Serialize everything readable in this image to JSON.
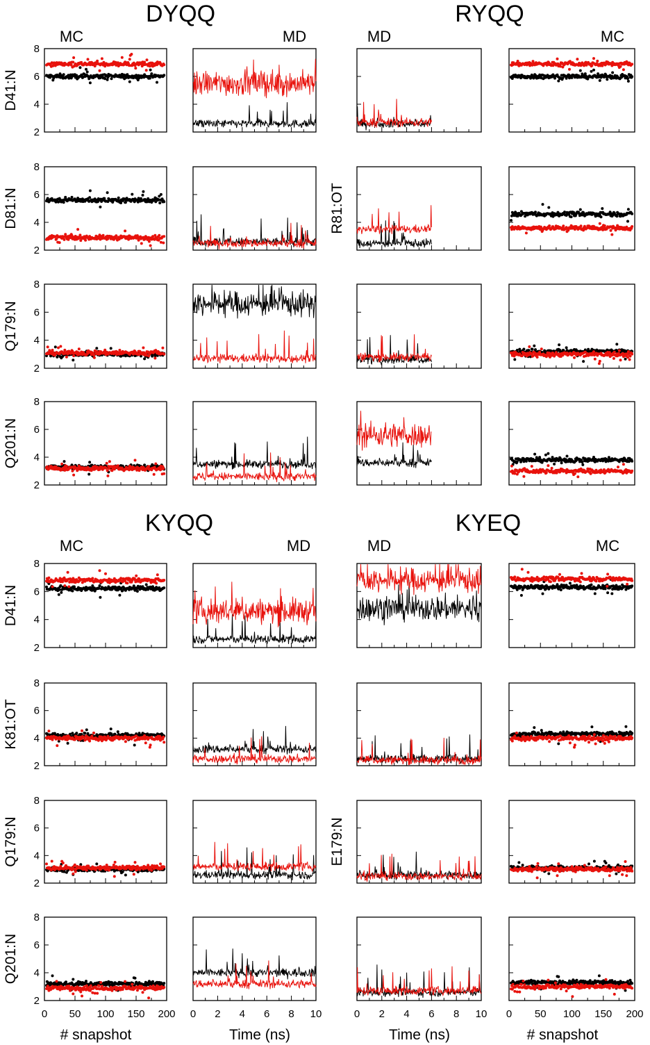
{
  "figure": {
    "y_ticks": [
      "2",
      "4",
      "6",
      "8"
    ],
    "mc_x_ticks": [
      "0",
      "50",
      "100",
      "150",
      "200"
    ],
    "md_x_ticks": [
      "0",
      "2",
      "4",
      "6",
      "8",
      "10"
    ],
    "mc_xlabel": "# snapshot",
    "md_xlabel": "Time (ns)",
    "colors": {
      "series_a": "#000000",
      "series_b": "#e8120c"
    }
  },
  "chart_data": [
    {
      "title": "DYQQ",
      "left_label": "MC",
      "right_label": "MD",
      "type": "scatter",
      "rows": [
        {
          "ylabel": "D41:N",
          "mc": {
            "black": 6.0,
            "red": 6.9
          },
          "md": {
            "black": "2.6",
            "red": "5.5"
          }
        },
        {
          "ylabel": "D81:N",
          "mc": {
            "black": 5.6,
            "red": 2.9
          },
          "md": {
            "black": 2.6,
            "red": 2.5
          }
        },
        {
          "ylabel": "Q179:N",
          "mc": {
            "black": 3.0,
            "red": 3.1
          },
          "md": {
            "black": "6.6",
            "red": 2.7
          }
        },
        {
          "ylabel": "Q201:N",
          "mc": {
            "black": 3.3,
            "red": 3.2
          },
          "md": {
            "black": 3.5,
            "red": 2.6
          }
        }
      ]
    },
    {
      "title": "RYQQ",
      "left_label": "MD",
      "right_label": "MC",
      "type": "scatter",
      "rows": [
        {
          "ylabel": "",
          "md": {
            "black": 2.6,
            "red": 2.7,
            "end_ns": 6
          },
          "mc": {
            "black": 6.0,
            "red": 6.9
          }
        },
        {
          "ylabel": "R81:OT",
          "md": {
            "black": 2.5,
            "red": 3.5,
            "end_ns": 6
          },
          "mc": {
            "black": 4.6,
            "red": 3.6
          }
        },
        {
          "ylabel": "",
          "md": {
            "black": 2.6,
            "red": 2.8,
            "end_ns": 6
          },
          "mc": {
            "black": 3.2,
            "red": 3.0
          }
        },
        {
          "ylabel": "",
          "md": {
            "black": 3.6,
            "red": 5.6,
            "end_ns": 6
          },
          "mc": {
            "black": 3.8,
            "red": 3.0
          }
        }
      ]
    },
    {
      "title": "KYQQ",
      "left_label": "MC",
      "right_label": "MD",
      "type": "scatter",
      "rows": [
        {
          "ylabel": "D41:N",
          "mc": {
            "black": 6.2,
            "red": 6.8
          },
          "md": {
            "black": "2.6",
            "red": 4.6
          }
        },
        {
          "ylabel": "K81:OT",
          "mc": {
            "black": 4.2,
            "red": 4.0
          },
          "md": {
            "black": 3.2,
            "red": 2.5
          }
        },
        {
          "ylabel": "Q179:N",
          "mc": {
            "black": 3.0,
            "red": 3.1
          },
          "md": {
            "black": 2.6,
            "red": 3.2
          }
        },
        {
          "ylabel": "Q201:N",
          "mc": {
            "black": 3.2,
            "red": 2.9
          },
          "md": {
            "black": 4.0,
            "red": 3.2
          }
        }
      ]
    },
    {
      "title": "KYEQ",
      "left_label": "MD",
      "right_label": "MC",
      "type": "scatter",
      "rows": [
        {
          "ylabel": "",
          "md": {
            "black": 4.8,
            "red": 6.8
          },
          "mc": {
            "black": 6.3,
            "red": 6.9
          }
        },
        {
          "ylabel": "",
          "md": {
            "black": 2.5,
            "red": 2.4
          },
          "mc": {
            "black": 4.3,
            "red": 4.0
          }
        },
        {
          "ylabel": "E179:N",
          "md": {
            "black": 2.6,
            "red": 2.5
          },
          "mc": {
            "black": 3.1,
            "red": 3.0
          }
        },
        {
          "ylabel": "",
          "md": {
            "black": 2.6,
            "red": 2.7
          },
          "mc": {
            "black": 3.3,
            "red": 3.0
          }
        }
      ]
    }
  ]
}
